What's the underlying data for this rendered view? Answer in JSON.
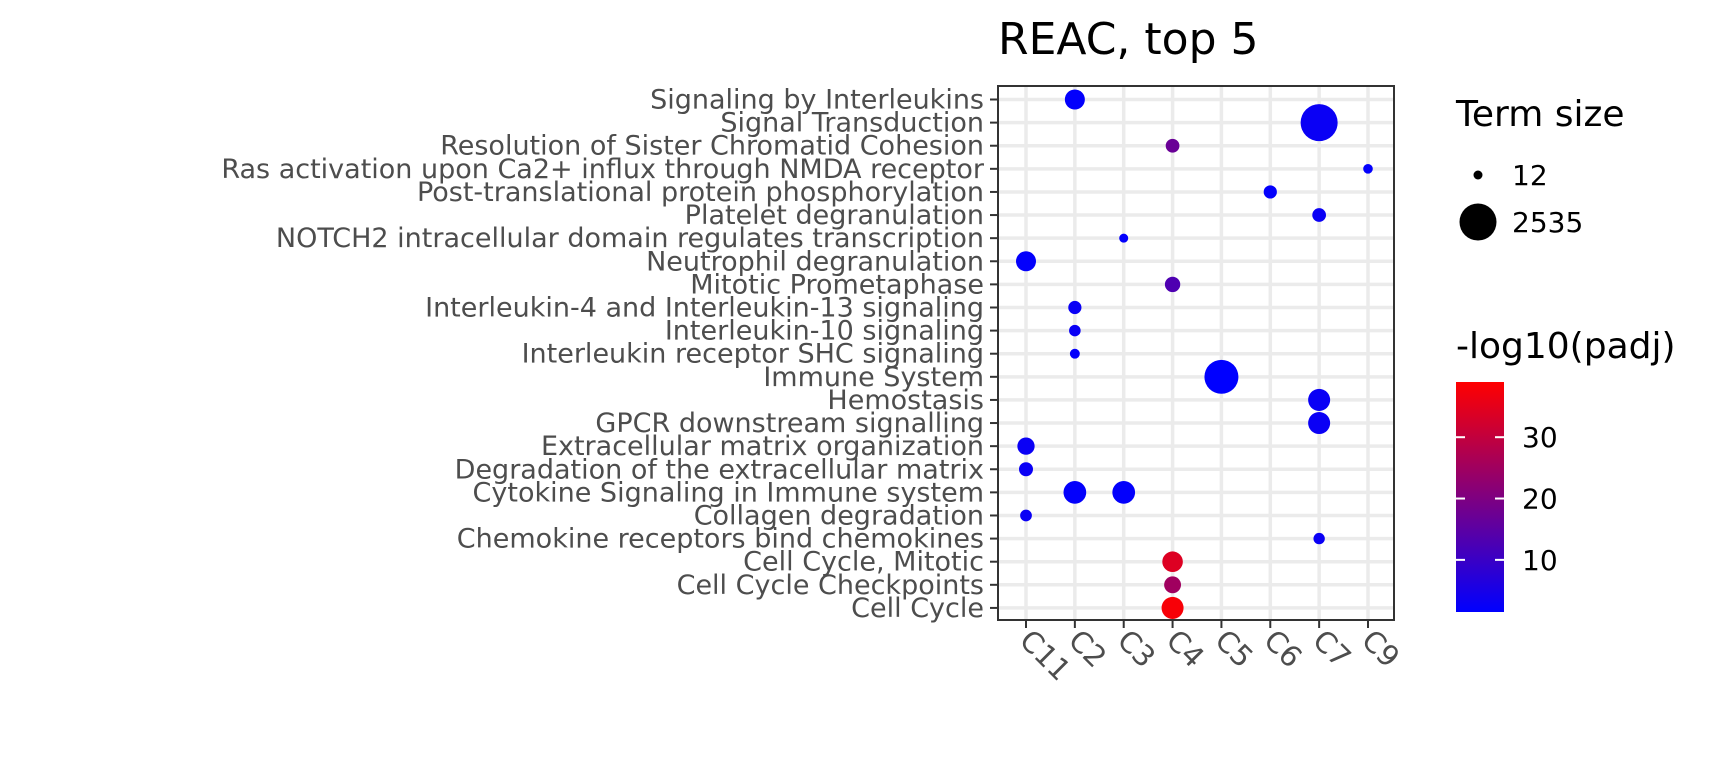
{
  "chart_data": {
    "type": "scatter",
    "title": "REAC, top 5",
    "xlabel": "",
    "ylabel": "",
    "x_categories": [
      "C11",
      "C2",
      "C3",
      "C4",
      "C5",
      "C6",
      "C7",
      "C9"
    ],
    "y_categories": [
      "Signaling by Interleukins",
      "Signal Transduction",
      "Resolution of Sister Chromatid Cohesion",
      "Ras activation upon Ca2+ influx through NMDA receptor",
      "Post-translational protein phosphorylation",
      "Platelet degranulation",
      "NOTCH2 intracellular domain regulates transcription",
      "Neutrophil degranulation",
      "Mitotic Prometaphase",
      "Interleukin-4 and Interleukin-13 signaling",
      "Interleukin-10 signaling",
      "Interleukin receptor SHC signaling",
      "Immune System",
      "Hemostasis",
      "GPCR downstream signalling",
      "Extracellular matrix organization",
      "Degradation of the extracellular matrix",
      "Cytokine Signaling in Immune system",
      "Collagen degradation",
      "Chemokine receptors bind chemokines",
      "Cell Cycle, Mitotic",
      "Cell Cycle Checkpoints",
      "Cell Cycle"
    ],
    "points": [
      {
        "x": "C2",
        "y": "Signaling by Interleukins",
        "term_size": 480,
        "neglog10_padj": 2
      },
      {
        "x": "C7",
        "y": "Signal Transduction",
        "term_size": 2535,
        "neglog10_padj": 3
      },
      {
        "x": "C4",
        "y": "Resolution of Sister Chromatid Cohesion",
        "term_size": 130,
        "neglog10_padj": 17
      },
      {
        "x": "C9",
        "y": "Ras activation upon Ca2+ influx through NMDA receptor",
        "term_size": 20,
        "neglog10_padj": 2
      },
      {
        "x": "C6",
        "y": "Post-translational protein phosphorylation",
        "term_size": 110,
        "neglog10_padj": 2
      },
      {
        "x": "C7",
        "y": "Platelet degranulation",
        "term_size": 130,
        "neglog10_padj": 3
      },
      {
        "x": "C3",
        "y": "NOTCH2 intracellular domain regulates transcription",
        "term_size": 12,
        "neglog10_padj": 2
      },
      {
        "x": "C11",
        "y": "Neutrophil degranulation",
        "term_size": 480,
        "neglog10_padj": 2
      },
      {
        "x": "C4",
        "y": "Mitotic Prometaphase",
        "term_size": 200,
        "neglog10_padj": 13
      },
      {
        "x": "C2",
        "y": "Interleukin-4 and Interleukin-13 signaling",
        "term_size": 110,
        "neglog10_padj": 3
      },
      {
        "x": "C2",
        "y": "Interleukin-10 signaling",
        "term_size": 60,
        "neglog10_padj": 3
      },
      {
        "x": "C2",
        "y": "Interleukin receptor SHC signaling",
        "term_size": 25,
        "neglog10_padj": 2
      },
      {
        "x": "C5",
        "y": "Immune System",
        "term_size": 2050,
        "neglog10_padj": 1.5
      },
      {
        "x": "C7",
        "y": "Hemostasis",
        "term_size": 640,
        "neglog10_padj": 3
      },
      {
        "x": "C7",
        "y": "GPCR downstream signalling",
        "term_size": 640,
        "neglog10_padj": 3
      },
      {
        "x": "C11",
        "y": "Extracellular matrix organization",
        "term_size": 300,
        "neglog10_padj": 3
      },
      {
        "x": "C11",
        "y": "Degradation of the extracellular matrix",
        "term_size": 140,
        "neglog10_padj": 3
      },
      {
        "x": "C2",
        "y": "Cytokine Signaling in Immune system",
        "term_size": 700,
        "neglog10_padj": 2
      },
      {
        "x": "C3",
        "y": "Cytokine Signaling in Immune system",
        "term_size": 700,
        "neglog10_padj": 2
      },
      {
        "x": "C11",
        "y": "Collagen degradation",
        "term_size": 65,
        "neglog10_padj": 3
      },
      {
        "x": "C7",
        "y": "Chemokine receptors bind chemokines",
        "term_size": 55,
        "neglog10_padj": 3
      },
      {
        "x": "C4",
        "y": "Cell Cycle, Mitotic",
        "term_size": 520,
        "neglog10_padj": 34
      },
      {
        "x": "C4",
        "y": "Cell Cycle Checkpoints",
        "term_size": 280,
        "neglog10_padj": 25
      },
      {
        "x": "C4",
        "y": "Cell Cycle",
        "term_size": 640,
        "neglog10_padj": 38
      }
    ],
    "size_legend": {
      "title": "Term size",
      "breaks": [
        12,
        2535
      ]
    },
    "color_legend": {
      "title": "-log10(padj)",
      "breaks": [
        10,
        20,
        30
      ],
      "range": [
        1.5,
        39
      ],
      "low_color": "#0000FF",
      "high_color": "#FF0000"
    },
    "grid": true,
    "legend_position": "right"
  }
}
